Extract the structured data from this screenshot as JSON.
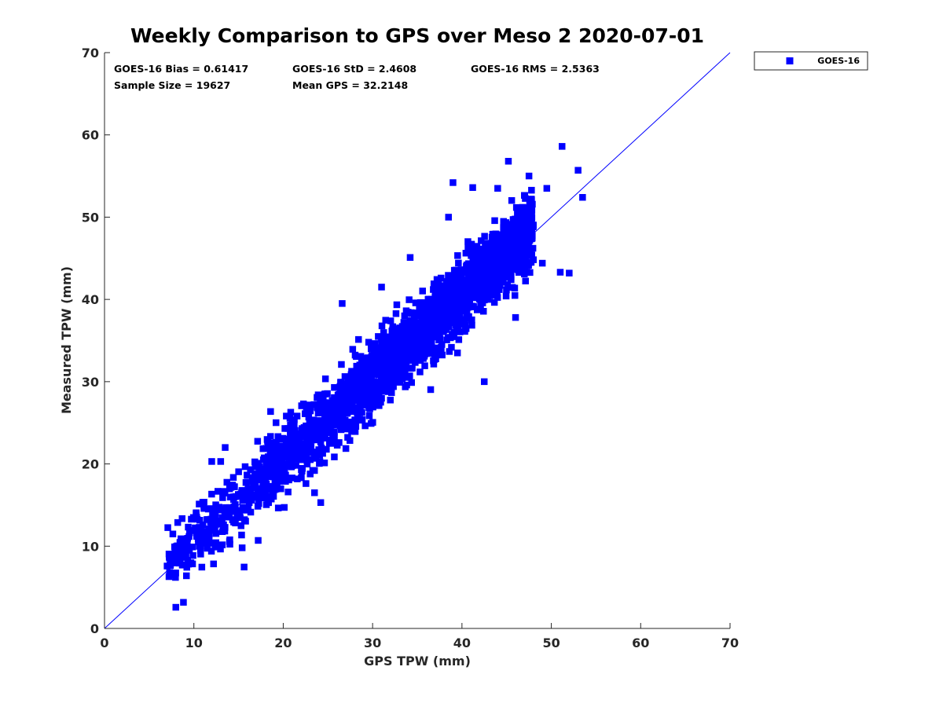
{
  "chart_data": {
    "type": "scatter",
    "title": "Weekly Comparison to GPS over Meso 2 2020-07-01",
    "xlabel": "GPS TPW (mm)",
    "ylabel": "Measured TPW (mm)",
    "xlim": [
      0,
      70
    ],
    "ylim": [
      0,
      70
    ],
    "xticks": [
      "0",
      "10",
      "20",
      "30",
      "40",
      "50",
      "60",
      "70"
    ],
    "yticks": [
      "0",
      "10",
      "20",
      "30",
      "40",
      "50",
      "60",
      "70"
    ],
    "grid": false,
    "legend_position": "outside-top-right",
    "series": [
      {
        "name": "GOES-16",
        "color": "#0000ff",
        "marker": "square",
        "bias": 0.61417,
        "std": 2.4608,
        "n": 19627,
        "x_range": [
          7,
          53.5
        ]
      }
    ],
    "reference_line": {
      "name": "1:1 line",
      "color": "#0000ff",
      "from": [
        0,
        0
      ],
      "to": [
        70,
        70
      ]
    },
    "outliers": [
      [
        51.2,
        58.6
      ],
      [
        53.0,
        55.7
      ],
      [
        47.5,
        55.0
      ],
      [
        45.2,
        56.8
      ],
      [
        39.0,
        54.2
      ],
      [
        41.2,
        53.6
      ],
      [
        44.0,
        53.5
      ],
      [
        49.5,
        53.5
      ],
      [
        53.5,
        52.4
      ],
      [
        38.5,
        50.0
      ],
      [
        26.6,
        39.5
      ],
      [
        23.5,
        16.5
      ],
      [
        24.2,
        15.3
      ],
      [
        46.0,
        37.8
      ],
      [
        42.5,
        30.0
      ],
      [
        39.5,
        33.5
      ],
      [
        8.7,
        7.7
      ],
      [
        17.2,
        10.7
      ],
      [
        15.4,
        9.8
      ],
      [
        9.5,
        9.5
      ],
      [
        12.0,
        20.3
      ],
      [
        13.0,
        20.3
      ],
      [
        13.5,
        22.0
      ],
      [
        31.0,
        41.5
      ],
      [
        45.5,
        42.4
      ],
      [
        51.0,
        43.3
      ],
      [
        52.0,
        43.2
      ],
      [
        49.0,
        44.4
      ],
      [
        34.2,
        45.1
      ],
      [
        23.5,
        19.2
      ]
    ]
  },
  "stats": {
    "bias_label": "GOES-16 Bias = 0.61417",
    "std_label": "GOES-16 StD = 2.4608",
    "rms_label": "GOES-16 RMS = 2.5363",
    "sample_label": "Sample Size = 19627",
    "mean_label": "Mean GPS = 32.2148"
  }
}
